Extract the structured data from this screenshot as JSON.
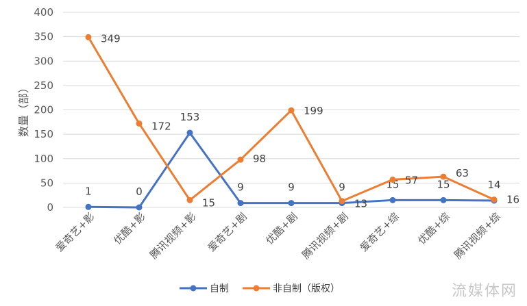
{
  "chart_data": {
    "type": "line",
    "categories": [
      "爱奇艺+影",
      "优酷+影",
      "腾讯视频+影",
      "爱奇艺+剧",
      "优酷+剧",
      "腾讯视频+剧",
      "爱奇艺+综",
      "优酷+综",
      "腾讯视频+综"
    ],
    "series": [
      {
        "name": "自制",
        "color": "#4472C4",
        "values": [
          1,
          0,
          153,
          9,
          9,
          9,
          15,
          15,
          14
        ]
      },
      {
        "name": "非自制（版权）",
        "color": "#ED7D31",
        "values": [
          349,
          172,
          15,
          98,
          199,
          13,
          57,
          63,
          16
        ]
      }
    ],
    "ylabel": "数量（部）",
    "ylim": [
      0,
      400
    ],
    "yticks": [
      0,
      50,
      100,
      150,
      200,
      250,
      300,
      350,
      400
    ],
    "grid": true,
    "legend": "bottom"
  },
  "watermark": "流媒体网"
}
